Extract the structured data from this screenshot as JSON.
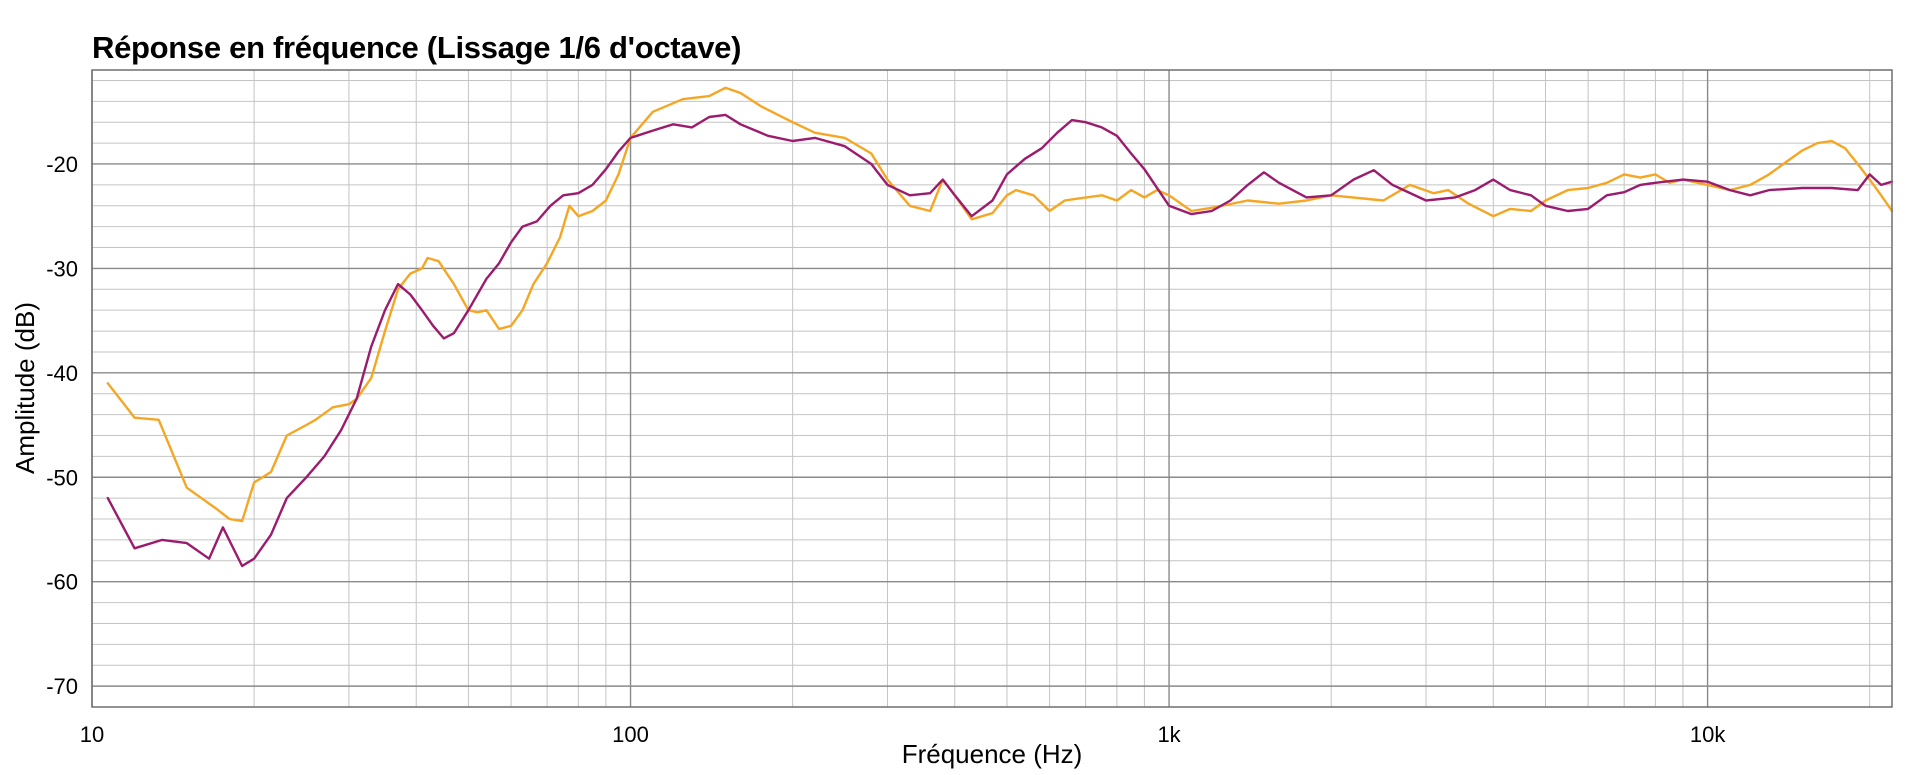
{
  "chart_data": {
    "type": "line",
    "title": "Réponse en fréquence (Lissage 1/6 d'octave)",
    "xlabel": "Fréquence (Hz)",
    "ylabel": "Amplitude (dB)",
    "x_scale": "log",
    "xlim": [
      10,
      22000
    ],
    "ylim": [
      -72,
      -11
    ],
    "x_ticks": [
      {
        "value": 10,
        "label": "10"
      },
      {
        "value": 100,
        "label": "100"
      },
      {
        "value": 1000,
        "label": "1k"
      },
      {
        "value": 10000,
        "label": "10k"
      }
    ],
    "y_ticks": [
      {
        "value": -20,
        "label": "-20"
      },
      {
        "value": -30,
        "label": "-30"
      },
      {
        "value": -40,
        "label": "-40"
      },
      {
        "value": -50,
        "label": "-50"
      },
      {
        "value": -60,
        "label": "-60"
      },
      {
        "value": -70,
        "label": "-70"
      }
    ],
    "grid": true,
    "legend": "none",
    "series": [
      {
        "color": "#f5a623",
        "points": [
          [
            10.7,
            -41
          ],
          [
            12,
            -44.3
          ],
          [
            13.3,
            -44.5
          ],
          [
            15,
            -51
          ],
          [
            17,
            -53
          ],
          [
            18,
            -54
          ],
          [
            19,
            -54.2
          ],
          [
            20,
            -50.5
          ],
          [
            21.5,
            -49.5
          ],
          [
            23,
            -46
          ],
          [
            25,
            -45
          ],
          [
            26,
            -44.5
          ],
          [
            28,
            -43.3
          ],
          [
            30,
            -43
          ],
          [
            31,
            -42.5
          ],
          [
            33,
            -40.5
          ],
          [
            35,
            -36
          ],
          [
            37,
            -32
          ],
          [
            39,
            -30.5
          ],
          [
            41,
            -30
          ],
          [
            42,
            -29
          ],
          [
            44,
            -29.3
          ],
          [
            47,
            -31.5
          ],
          [
            50,
            -34
          ],
          [
            52,
            -34.2
          ],
          [
            54,
            -34
          ],
          [
            57,
            -35.8
          ],
          [
            60,
            -35.5
          ],
          [
            63,
            -34
          ],
          [
            66,
            -31.5
          ],
          [
            70,
            -29.5
          ],
          [
            74,
            -27
          ],
          [
            77,
            -24
          ],
          [
            80,
            -25
          ],
          [
            85,
            -24.5
          ],
          [
            90,
            -23.5
          ],
          [
            95,
            -21
          ],
          [
            100,
            -17.5
          ],
          [
            110,
            -15
          ],
          [
            125,
            -13.8
          ],
          [
            140,
            -13.5
          ],
          [
            150,
            -12.7
          ],
          [
            160,
            -13.2
          ],
          [
            175,
            -14.5
          ],
          [
            200,
            -16
          ],
          [
            220,
            -17
          ],
          [
            250,
            -17.5
          ],
          [
            280,
            -19
          ],
          [
            300,
            -21.5
          ],
          [
            330,
            -24
          ],
          [
            360,
            -24.5
          ],
          [
            380,
            -21.5
          ],
          [
            400,
            -23
          ],
          [
            430,
            -25.3
          ],
          [
            470,
            -24.7
          ],
          [
            500,
            -23
          ],
          [
            520,
            -22.5
          ],
          [
            560,
            -23
          ],
          [
            600,
            -24.5
          ],
          [
            640,
            -23.5
          ],
          [
            680,
            -23.3
          ],
          [
            750,
            -23
          ],
          [
            800,
            -23.5
          ],
          [
            850,
            -22.5
          ],
          [
            900,
            -23.2
          ],
          [
            950,
            -22.5
          ],
          [
            1000,
            -23
          ],
          [
            1100,
            -24.5
          ],
          [
            1200,
            -24.2
          ],
          [
            1400,
            -23.5
          ],
          [
            1600,
            -23.8
          ],
          [
            1800,
            -23.5
          ],
          [
            2000,
            -23
          ],
          [
            2500,
            -23.5
          ],
          [
            2800,
            -22
          ],
          [
            3100,
            -22.8
          ],
          [
            3300,
            -22.5
          ],
          [
            3600,
            -23.8
          ],
          [
            4000,
            -25
          ],
          [
            4300,
            -24.3
          ],
          [
            4700,
            -24.5
          ],
          [
            5000,
            -23.5
          ],
          [
            5500,
            -22.5
          ],
          [
            6000,
            -22.3
          ],
          [
            6500,
            -21.8
          ],
          [
            7000,
            -21
          ],
          [
            7500,
            -21.3
          ],
          [
            8000,
            -21
          ],
          [
            8500,
            -21.8
          ],
          [
            9000,
            -21.5
          ],
          [
            10000,
            -22
          ],
          [
            11000,
            -22.5
          ],
          [
            12000,
            -22
          ],
          [
            13000,
            -21
          ],
          [
            14000,
            -19.8
          ],
          [
            15000,
            -18.7
          ],
          [
            16000,
            -18
          ],
          [
            17000,
            -17.8
          ],
          [
            18000,
            -18.5
          ],
          [
            19000,
            -20
          ],
          [
            20000,
            -21.5
          ],
          [
            21000,
            -23
          ],
          [
            22000,
            -24.5
          ]
        ]
      },
      {
        "color": "#9b1c6e",
        "points": [
          [
            10.7,
            -52
          ],
          [
            12,
            -56.8
          ],
          [
            13.5,
            -56
          ],
          [
            15,
            -56.3
          ],
          [
            16.5,
            -57.8
          ],
          [
            17.5,
            -54.8
          ],
          [
            19,
            -58.5
          ],
          [
            20,
            -57.8
          ],
          [
            21.5,
            -55.5
          ],
          [
            23,
            -52
          ],
          [
            25,
            -50
          ],
          [
            27,
            -48
          ],
          [
            29,
            -45.5
          ],
          [
            31,
            -42.5
          ],
          [
            33,
            -37.5
          ],
          [
            35,
            -34
          ],
          [
            37,
            -31.5
          ],
          [
            39,
            -32.5
          ],
          [
            41,
            -34
          ],
          [
            43,
            -35.5
          ],
          [
            45,
            -36.7
          ],
          [
            47,
            -36.2
          ],
          [
            50,
            -34
          ],
          [
            54,
            -31
          ],
          [
            57,
            -29.5
          ],
          [
            60,
            -27.5
          ],
          [
            63,
            -26
          ],
          [
            67,
            -25.5
          ],
          [
            71,
            -24
          ],
          [
            75,
            -23
          ],
          [
            80,
            -22.8
          ],
          [
            85,
            -22
          ],
          [
            90,
            -20.5
          ],
          [
            95,
            -18.8
          ],
          [
            100,
            -17.5
          ],
          [
            110,
            -16.8
          ],
          [
            120,
            -16.2
          ],
          [
            130,
            -16.5
          ],
          [
            140,
            -15.5
          ],
          [
            150,
            -15.3
          ],
          [
            160,
            -16.2
          ],
          [
            180,
            -17.3
          ],
          [
            200,
            -17.8
          ],
          [
            220,
            -17.5
          ],
          [
            250,
            -18.3
          ],
          [
            280,
            -20
          ],
          [
            300,
            -22
          ],
          [
            330,
            -23
          ],
          [
            360,
            -22.8
          ],
          [
            380,
            -21.5
          ],
          [
            400,
            -23
          ],
          [
            430,
            -25
          ],
          [
            470,
            -23.5
          ],
          [
            500,
            -21
          ],
          [
            540,
            -19.5
          ],
          [
            580,
            -18.5
          ],
          [
            620,
            -17
          ],
          [
            660,
            -15.8
          ],
          [
            700,
            -16
          ],
          [
            750,
            -16.5
          ],
          [
            800,
            -17.3
          ],
          [
            850,
            -19
          ],
          [
            900,
            -20.5
          ],
          [
            1000,
            -24
          ],
          [
            1100,
            -24.8
          ],
          [
            1200,
            -24.5
          ],
          [
            1300,
            -23.5
          ],
          [
            1400,
            -22
          ],
          [
            1500,
            -20.8
          ],
          [
            1600,
            -21.8
          ],
          [
            1800,
            -23.2
          ],
          [
            2000,
            -23
          ],
          [
            2200,
            -21.5
          ],
          [
            2400,
            -20.6
          ],
          [
            2600,
            -22
          ],
          [
            3000,
            -23.5
          ],
          [
            3400,
            -23.2
          ],
          [
            3700,
            -22.5
          ],
          [
            4000,
            -21.5
          ],
          [
            4300,
            -22.5
          ],
          [
            4700,
            -23
          ],
          [
            5000,
            -24
          ],
          [
            5500,
            -24.5
          ],
          [
            6000,
            -24.3
          ],
          [
            6500,
            -23
          ],
          [
            7000,
            -22.7
          ],
          [
            7500,
            -22
          ],
          [
            8000,
            -21.8
          ],
          [
            9000,
            -21.5
          ],
          [
            10000,
            -21.7
          ],
          [
            11000,
            -22.5
          ],
          [
            12000,
            -23
          ],
          [
            13000,
            -22.5
          ],
          [
            15000,
            -22.3
          ],
          [
            17000,
            -22.3
          ],
          [
            19000,
            -22.5
          ],
          [
            20000,
            -21
          ],
          [
            21000,
            -22
          ],
          [
            22000,
            -21.7
          ]
        ]
      }
    ]
  }
}
